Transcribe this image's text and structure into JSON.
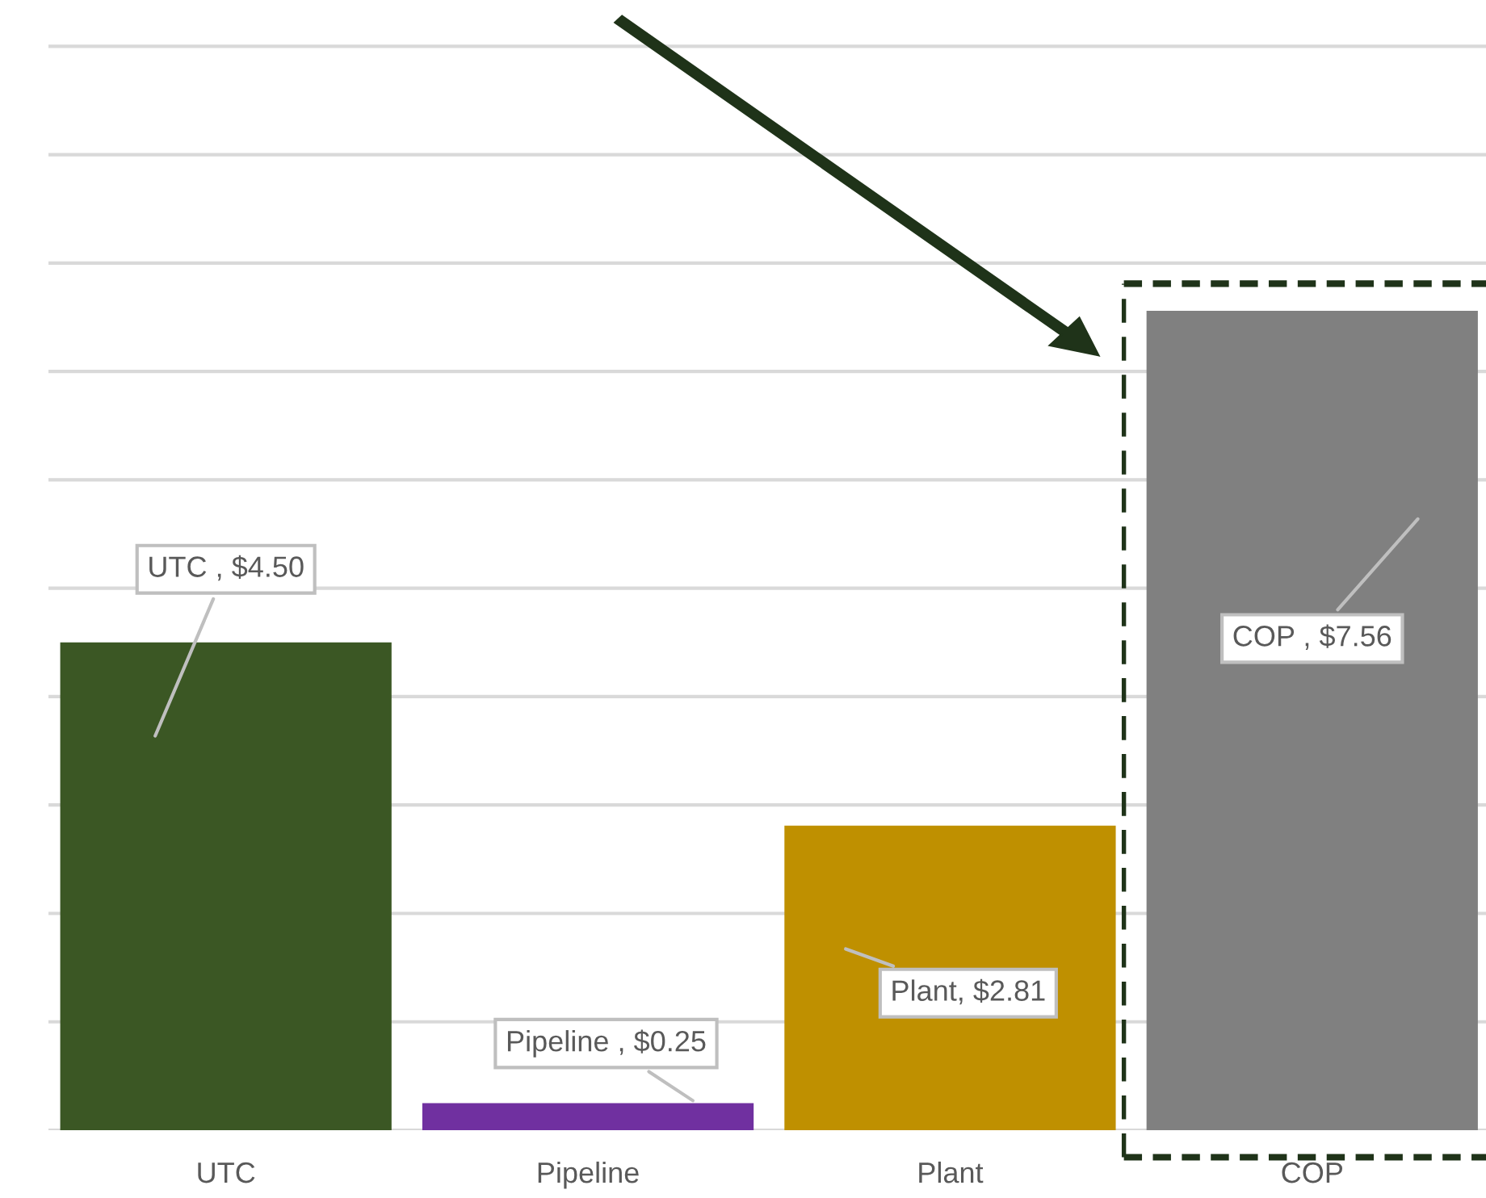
{
  "chart_data": {
    "type": "bar",
    "categories": [
      "UTC",
      "Pipeline",
      "Plant",
      "COP"
    ],
    "values": [
      4.5,
      0.25,
      2.81,
      7.56
    ],
    "colors": [
      "#3b5724",
      "#7030a0",
      "#bf9000",
      "#808080"
    ],
    "value_labels": [
      "UTC , $4.50",
      "Pipeline , $0.25",
      "Plant, $2.81",
      "COP , $7.56"
    ],
    "tick_labels": "x",
    "grid": "y",
    "legend": false
  }
}
